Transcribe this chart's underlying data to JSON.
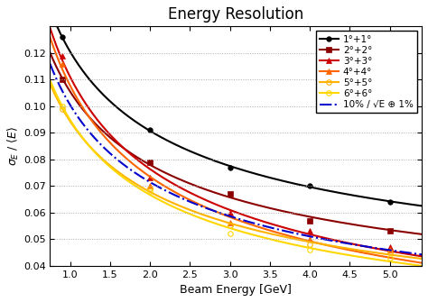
{
  "title": "Energy Resolution",
  "xlabel": "Beam Energy [GeV]",
  "ylabel": "σ_E / <E>",
  "xlim": [
    0.75,
    5.4
  ],
  "ylim": [
    0.04,
    0.13
  ],
  "yticks": [
    0.04,
    0.05,
    0.06,
    0.07,
    0.08,
    0.09,
    0.1,
    0.11,
    0.12
  ],
  "xticks": [
    1.0,
    1.5,
    2.0,
    2.5,
    3.0,
    3.5,
    4.0,
    4.5,
    5.0
  ],
  "series": [
    {
      "label": "1°+1°",
      "color": "#000000",
      "marker": "o",
      "markerfacecolor": "#000000",
      "markersize": 4,
      "linewidth": 1.5,
      "x": [
        0.9,
        2.0,
        3.0,
        4.0,
        5.0
      ],
      "y": [
        0.126,
        0.091,
        0.077,
        0.07,
        0.064
      ]
    },
    {
      "label": "2°+2°",
      "color": "#8B0000",
      "marker": "s",
      "markerfacecolor": "#8B0000",
      "markersize": 4,
      "linewidth": 1.5,
      "x": [
        0.9,
        2.0,
        3.0,
        4.0,
        5.0
      ],
      "y": [
        0.11,
        0.079,
        0.067,
        0.057,
        0.053
      ]
    },
    {
      "label": "3°+3°",
      "color": "#CC0000",
      "marker": "^",
      "markerfacecolor": "#CC0000",
      "markersize": 4,
      "linewidth": 1.5,
      "x": [
        0.9,
        2.0,
        3.0,
        4.0,
        5.0
      ],
      "y": [
        0.119,
        0.073,
        0.06,
        0.053,
        0.047
      ]
    },
    {
      "label": "4°+4°",
      "color": "#FF6600",
      "marker": "^",
      "markerfacecolor": "#FF6600",
      "markersize": 4,
      "linewidth": 1.5,
      "x": [
        0.9,
        2.0,
        3.0,
        4.0,
        5.0
      ],
      "y": [
        0.116,
        0.07,
        0.056,
        0.05,
        0.046
      ]
    },
    {
      "label": "5°+5°",
      "color": "#FFB300",
      "marker": "o",
      "markerfacecolor": "none",
      "markeredgecolor": "#FFB300",
      "markersize": 4,
      "linewidth": 1.5,
      "x": [
        0.9,
        2.0,
        3.0,
        4.0,
        5.0
      ],
      "y": [
        0.099,
        0.069,
        0.055,
        0.048,
        0.045
      ]
    },
    {
      "label": "6°+6°",
      "color": "#FFD700",
      "marker": "o",
      "markerfacecolor": "none",
      "markeredgecolor": "#FFD700",
      "markersize": 4,
      "linewidth": 1.5,
      "x": [
        0.9,
        2.0,
        3.0,
        4.0,
        5.0
      ],
      "y": [
        0.1,
        0.068,
        0.052,
        0.046,
        0.043
      ]
    }
  ],
  "fit_label": "10% / √E ⊕ 1%",
  "fit_color": "#0000CC",
  "fit_linestyle": "-.",
  "fit_linewidth": 1.5,
  "fit_a": 0.1,
  "fit_b": 0.01,
  "background_color": "#ffffff",
  "grid_color": "#aaaaaa",
  "legend_fontsize": 7.5,
  "title_fontsize": 12
}
